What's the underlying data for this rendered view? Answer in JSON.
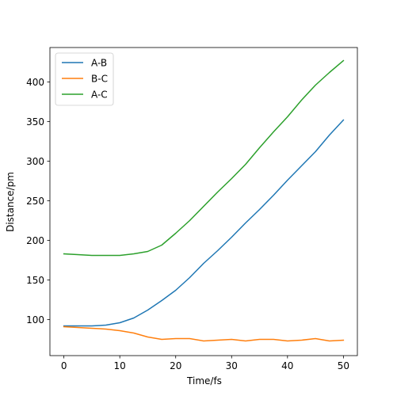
{
  "chart_data": {
    "type": "line",
    "title": "",
    "xlabel": "Time/fs",
    "ylabel": "Distance/pm",
    "xlim": [
      -2.5,
      52.5
    ],
    "ylim": [
      54.5,
      443.5
    ],
    "xticks": [
      0,
      10,
      20,
      30,
      40,
      50
    ],
    "yticks": [
      100,
      150,
      200,
      250,
      300,
      350,
      400
    ],
    "grid": false,
    "legend_position": "top-left",
    "series": [
      {
        "name": "A-B",
        "color": "#1f77b4",
        "x": [
          0,
          2.5,
          5,
          7.5,
          10,
          12.5,
          15,
          17.5,
          20,
          22.5,
          25,
          27.5,
          30,
          32.5,
          35,
          37.5,
          40,
          42.5,
          45,
          47.5,
          50
        ],
        "y": [
          92,
          92,
          92,
          93,
          96,
          102,
          112,
          124,
          137,
          153,
          171,
          187,
          204,
          222,
          239,
          257,
          276,
          294,
          312,
          333,
          352
        ]
      },
      {
        "name": "B-C",
        "color": "#ff7f0e",
        "x": [
          0,
          2.5,
          5,
          7.5,
          10,
          12.5,
          15,
          17.5,
          20,
          22.5,
          25,
          27.5,
          30,
          32.5,
          35,
          37.5,
          40,
          42.5,
          45,
          47.5,
          50
        ],
        "y": [
          91,
          90,
          89,
          88,
          86,
          83,
          78,
          75,
          76,
          76,
          73,
          74,
          75,
          73,
          75,
          75,
          73,
          74,
          76,
          73,
          74
        ]
      },
      {
        "name": "A-C",
        "color": "#2ca02c",
        "x": [
          0,
          2.5,
          5,
          7.5,
          10,
          12.5,
          15,
          17.5,
          20,
          22.5,
          25,
          27.5,
          30,
          32.5,
          35,
          37.5,
          40,
          42.5,
          45,
          47.5,
          50
        ],
        "y": [
          183,
          182,
          181,
          181,
          181,
          183,
          186,
          194,
          209,
          225,
          243,
          261,
          278,
          296,
          317,
          337,
          356,
          377,
          396,
          412,
          427
        ]
      }
    ]
  }
}
